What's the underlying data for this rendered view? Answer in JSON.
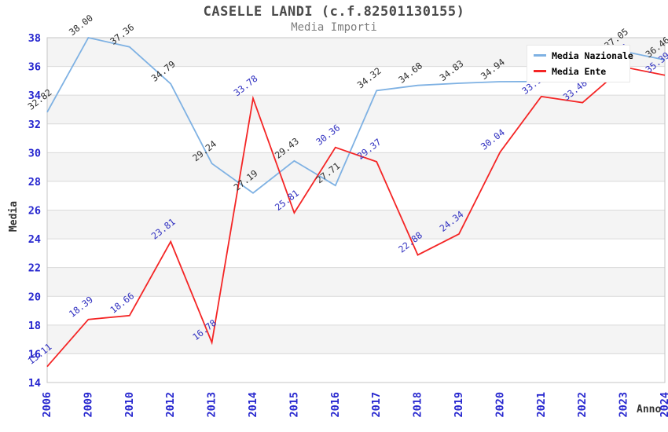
{
  "title": "CASELLE LANDI (c.f.82501130155)",
  "subtitle": "Media Importi",
  "axes": {
    "y_title": "Media",
    "x_title": "Anno",
    "y_ticks": [
      "38",
      "36",
      "34",
      "32",
      "30",
      "28",
      "26",
      "24",
      "22",
      "20",
      "18",
      "16",
      "14"
    ]
  },
  "colors": {
    "national_line": "#7eb1e3",
    "ente_line": "#f42525",
    "national_label": "#2e2e2e",
    "ente_label": "#3030c0",
    "tick_label": "#2727cf",
    "gridline": "#dadada",
    "band": "#f4f4f4",
    "plot_border": "#c6c6c6"
  },
  "chart_data": {
    "type": "line",
    "title": "CASELLE LANDI (c.f.82501130155)",
    "subtitle": "Media Importi",
    "xlabel": "Anno",
    "ylabel": "Media",
    "ylim": [
      14,
      38
    ],
    "y_tick_step": 2,
    "grid": true,
    "background_bands": "alternating gray/white horizontal bands",
    "legend_position": "top-right",
    "categories": [
      "2006",
      "2009",
      "2010",
      "2012",
      "2013",
      "2014",
      "2015",
      "2016",
      "2017",
      "2018",
      "2019",
      "2020",
      "2021",
      "2022",
      "2023",
      "2024"
    ],
    "series": [
      {
        "name": "Media Nazionale",
        "color": "#7eb1e3",
        "values": [
          32.82,
          38.0,
          37.36,
          34.79,
          29.24,
          27.19,
          29.43,
          27.71,
          34.32,
          34.68,
          34.83,
          34.94,
          34.95,
          35.0,
          37.05,
          36.46
        ],
        "labels": [
          "32.82",
          "38.00",
          "37.36",
          "34.79",
          "29.24",
          "27.19",
          "29.43",
          "27.71",
          "34.32",
          "34.68",
          "34.83",
          "34.94",
          null,
          null,
          "37.05",
          "36.46"
        ]
      },
      {
        "name": "Media Ente",
        "color": "#f42525",
        "values": [
          15.11,
          18.39,
          18.66,
          23.81,
          16.78,
          33.78,
          25.81,
          30.36,
          29.37,
          22.88,
          24.34,
          30.04,
          33.91,
          33.48,
          35.96,
          35.39
        ],
        "labels": [
          "15.11",
          "18.39",
          "18.66",
          "23.81",
          "16.78",
          "33.78",
          "25.81",
          "30.36",
          "29.37",
          "22.88",
          "24.34",
          "30.04",
          "33.91",
          "33.48",
          "35.96",
          "35.39"
        ]
      }
    ]
  }
}
